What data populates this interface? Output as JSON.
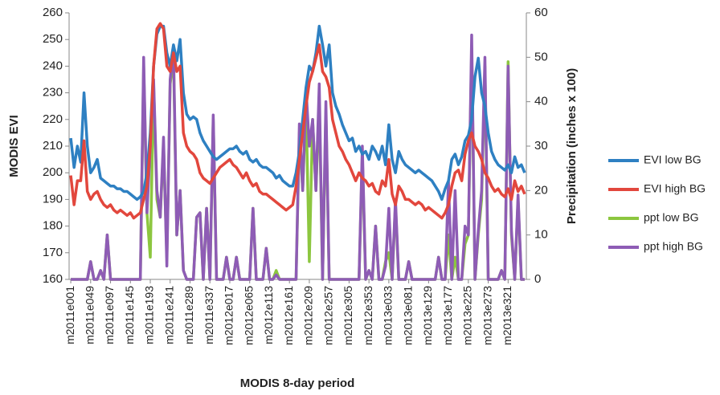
{
  "chart_data": {
    "type": "line",
    "xlabel": "MODIS 8-day period",
    "ylabel": "MODIS EVI",
    "y2label": "Precipitation (inches x 100)",
    "categories": [
      "m2011e001",
      null,
      null,
      null,
      null,
      null,
      "m2011e049",
      null,
      null,
      null,
      null,
      null,
      "m2011e097",
      null,
      null,
      null,
      null,
      null,
      "m2011e145",
      null,
      null,
      null,
      null,
      null,
      "m2011e193",
      null,
      null,
      null,
      null,
      null,
      "m2011e241",
      null,
      null,
      null,
      null,
      null,
      "m2011e289",
      null,
      null,
      null,
      null,
      null,
      "m2011e337",
      null,
      null,
      null,
      null,
      null,
      "m2012e017",
      null,
      null,
      null,
      null,
      null,
      "m2012e065",
      null,
      null,
      null,
      null,
      null,
      "m2012e113",
      null,
      null,
      null,
      null,
      null,
      "m2012e161",
      null,
      null,
      null,
      null,
      null,
      "m2012e209",
      null,
      null,
      null,
      null,
      null,
      "m2012e257",
      null,
      null,
      null,
      null,
      null,
      "m2012e305",
      null,
      null,
      null,
      null,
      null,
      "m2012e353",
      null,
      null,
      null,
      null,
      null,
      "m2013e033",
      null,
      null,
      null,
      null,
      null,
      "m2013e081",
      null,
      null,
      null,
      null,
      null,
      "m2013e129",
      null,
      null,
      null,
      null,
      null,
      "m2013e177",
      null,
      null,
      null,
      null,
      null,
      "m2013e225",
      null,
      null,
      null,
      null,
      null,
      "m2013e273",
      null,
      null,
      null,
      null,
      null,
      "m2013e321",
      null,
      null,
      null,
      null,
      null
    ],
    "ylim": [
      160,
      260
    ],
    "yticks": [
      160,
      170,
      180,
      190,
      200,
      210,
      220,
      230,
      240,
      250,
      260
    ],
    "y2lim": [
      0,
      60
    ],
    "y2ticks": [
      0,
      10,
      20,
      30,
      40,
      50,
      60
    ],
    "legend": "right",
    "series": [
      {
        "name": "EVI low BG",
        "color": "#2e80c2",
        "values": [
          213,
          202,
          210,
          204,
          230,
          210,
          200,
          202,
          205,
          198,
          197,
          196,
          195,
          195,
          194,
          194,
          193,
          193,
          192,
          191,
          190,
          191,
          193,
          200,
          215,
          240,
          252,
          255,
          255,
          245,
          240,
          248,
          242,
          250,
          230,
          222,
          220,
          221,
          220,
          215,
          212,
          210,
          208,
          206,
          205,
          206,
          207,
          208,
          209,
          209,
          210,
          208,
          207,
          208,
          205,
          204,
          205,
          203,
          202,
          202,
          201,
          200,
          198,
          199,
          197,
          196,
          195,
          195,
          200,
          208,
          220,
          232,
          240,
          238,
          245,
          255,
          248,
          240,
          248,
          230,
          225,
          222,
          218,
          215,
          212,
          213,
          208,
          210,
          207,
          208,
          205,
          210,
          208,
          205,
          210,
          203,
          218,
          205,
          200,
          208,
          205,
          203,
          202,
          201,
          200,
          201,
          200,
          199,
          198,
          197,
          195,
          193,
          190,
          194,
          197,
          205,
          207,
          203,
          206,
          212,
          214,
          220,
          236,
          243,
          230,
          225,
          215,
          208,
          205,
          203,
          202,
          201,
          203,
          200,
          206,
          202,
          203,
          200
        ]
      },
      {
        "name": "EVI high BG",
        "color": "#e2473d",
        "values": [
          199,
          188,
          197,
          197,
          212,
          193,
          190,
          192,
          193,
          190,
          188,
          187,
          188,
          186,
          185,
          186,
          185,
          184,
          185,
          183,
          184,
          185,
          190,
          195,
          210,
          240,
          254,
          256,
          254,
          240,
          238,
          245,
          238,
          240,
          215,
          210,
          208,
          207,
          205,
          200,
          198,
          197,
          196,
          198,
          200,
          202,
          203,
          204,
          205,
          203,
          202,
          200,
          198,
          200,
          197,
          195,
          196,
          193,
          192,
          192,
          191,
          190,
          189,
          188,
          187,
          186,
          187,
          188,
          195,
          205,
          215,
          225,
          234,
          238,
          243,
          248,
          238,
          236,
          232,
          220,
          215,
          210,
          208,
          205,
          203,
          200,
          197,
          200,
          198,
          197,
          195,
          196,
          193,
          192,
          197,
          195,
          205,
          192,
          188,
          195,
          193,
          190,
          190,
          189,
          188,
          189,
          188,
          186,
          187,
          186,
          185,
          184,
          183,
          185,
          188,
          195,
          200,
          201,
          197,
          207,
          212,
          215,
          210,
          208,
          205,
          200,
          198,
          195,
          193,
          194,
          192,
          191,
          194,
          190,
          197,
          193,
          195,
          192
        ]
      },
      {
        "name": "ppt low BG",
        "color": "#8cc63f",
        "axis": "y2",
        "values": [
          0,
          0,
          0,
          0,
          0,
          0,
          4,
          0,
          0,
          2,
          0,
          10,
          0,
          0,
          0,
          0,
          0,
          0,
          0,
          0,
          0,
          0,
          48,
          15,
          5,
          44,
          18,
          14,
          30,
          5,
          44,
          50,
          10,
          20,
          2,
          0,
          0,
          0,
          14,
          15,
          0,
          16,
          0,
          36,
          0,
          0,
          0,
          5,
          0,
          0,
          5,
          0,
          0,
          0,
          0,
          16,
          0,
          0,
          0,
          7,
          0,
          0,
          2,
          0,
          0,
          0,
          0,
          0,
          0,
          33,
          20,
          40,
          4,
          36,
          20,
          40,
          0,
          38,
          0,
          0,
          0,
          0,
          0,
          0,
          0,
          0,
          0,
          0,
          28,
          0,
          2,
          0,
          12,
          0,
          0,
          4,
          6,
          0,
          17,
          0,
          0,
          0,
          4,
          0,
          0,
          0,
          0,
          0,
          0,
          0,
          0,
          5,
          0,
          0,
          10,
          0,
          5,
          0,
          0,
          8,
          10,
          52,
          0,
          10,
          18,
          48,
          0,
          0,
          0,
          0,
          2,
          0,
          49,
          10,
          0,
          18,
          0,
          0
        ]
      },
      {
        "name": "ppt high BG",
        "color": "#8e5cb5",
        "axis": "y2",
        "values": [
          0,
          0,
          0,
          0,
          0,
          0,
          4,
          0,
          0,
          2,
          0,
          10,
          0,
          0,
          0,
          0,
          0,
          0,
          0,
          0,
          0,
          0,
          50,
          15,
          30,
          45,
          20,
          14,
          32,
          3,
          45,
          52,
          10,
          20,
          2,
          0,
          0,
          0,
          14,
          15,
          0,
          16,
          0,
          37,
          0,
          0,
          0,
          5,
          0,
          0,
          5,
          0,
          0,
          0,
          0,
          16,
          0,
          0,
          0,
          7,
          0,
          0,
          1,
          0,
          0,
          0,
          0,
          0,
          0,
          35,
          20,
          43,
          30,
          36,
          20,
          44,
          0,
          40,
          0,
          0,
          0,
          0,
          0,
          0,
          0,
          0,
          0,
          0,
          30,
          0,
          2,
          0,
          12,
          0,
          0,
          3,
          16,
          0,
          18,
          0,
          0,
          0,
          4,
          0,
          0,
          0,
          0,
          0,
          0,
          0,
          0,
          5,
          0,
          0,
          22,
          0,
          20,
          0,
          0,
          12,
          10,
          55,
          0,
          11,
          20,
          50,
          0,
          0,
          0,
          0,
          2,
          0,
          48,
          11,
          0,
          19,
          0,
          0
        ]
      }
    ]
  }
}
